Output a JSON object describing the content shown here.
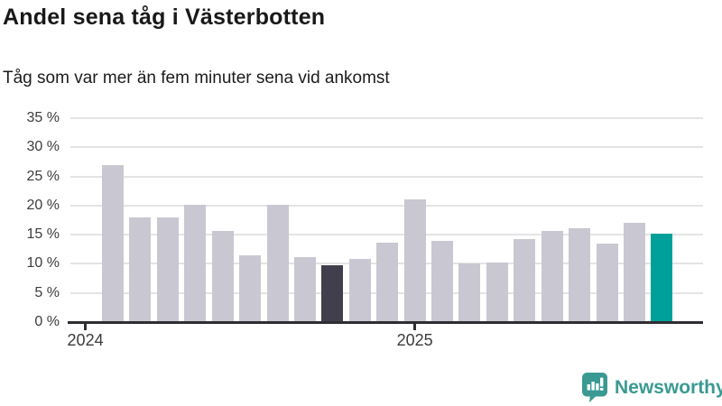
{
  "header": {
    "title": "Andel sena tåg i Västerbotten",
    "subtitle": "Tåg som var mer än fem minuter sena vid ankomst"
  },
  "chart_data": {
    "type": "bar",
    "title": "Andel sena tåg i Västerbotten",
    "subtitle": "Tåg som var mer än fem minuter sena vid ankomst",
    "unit": "%",
    "x": [
      "2024-02",
      "2024-03",
      "2024-04",
      "2024-05",
      "2024-06",
      "2024-07",
      "2024-08",
      "2024-09",
      "2024-10",
      "2024-11",
      "2024-12",
      "2025-01",
      "2025-02",
      "2025-03",
      "2025-04",
      "2025-05",
      "2025-06",
      "2025-07",
      "2025-08",
      "2025-09",
      "2025-10"
    ],
    "values": [
      27,
      17.9,
      17.9,
      20.1,
      15.7,
      11.5,
      20.1,
      11.2,
      9.7,
      10.8,
      13.7,
      21.1,
      13.9,
      10,
      10.2,
      14.3,
      15.6,
      16.1,
      13.4,
      17.1,
      15.1
    ],
    "ylim": [
      0,
      35
    ],
    "yticks": [
      0,
      5,
      10,
      15,
      20,
      25,
      30,
      35
    ],
    "ytick_labels": [
      "0 %",
      "5 %",
      "10 %",
      "15 %",
      "20 %",
      "25 %",
      "30 %",
      "35 %"
    ],
    "xticks": [
      {
        "label": "2024",
        "bar_index": -1
      },
      {
        "label": "2025",
        "bar_index": 11
      }
    ],
    "grid": "horizontal",
    "legend": "none",
    "colors": {
      "bar_default": "#c9c7d1",
      "bar_highlight_dark": "#413f4d",
      "bar_highlight_current": "#00a09a"
    },
    "highlights": [
      {
        "index": 8,
        "color_key": "bar_highlight_dark"
      },
      {
        "index": 20,
        "color_key": "bar_highlight_current"
      }
    ]
  },
  "style": {
    "gridline_color": "#e4e4e4",
    "axis_color": "#2f2e33",
    "tick_text_color": "#3c3c3c",
    "title_color": "#191919",
    "brand_color": "#3a9a93"
  },
  "footer": {
    "brand": "Newsworthy"
  }
}
